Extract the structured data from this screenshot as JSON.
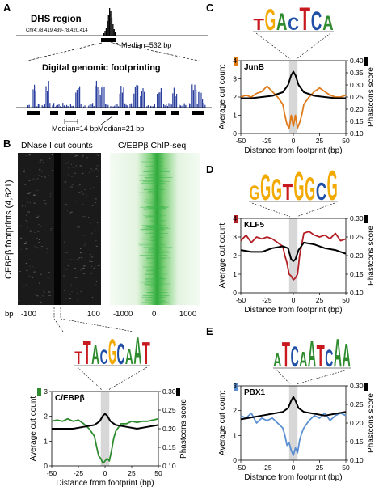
{
  "panels": {
    "a": {
      "letter": "A",
      "dhs_title": "DHS region",
      "dhs_coord": "Chr4:78,419,439-78,420,414",
      "dhs_median": "Median=532 bp",
      "dgf_title": "Digital genomic footprinting",
      "median_14": "Median=14 bp",
      "median_21": "Median=21 bp"
    },
    "b": {
      "letter": "B",
      "dnase_title": "DNase I cut counts",
      "chip_title": "C/EBPβ ChIP-seq",
      "ylabel": "CEBPβ footprints (4,821)",
      "bp": "bp",
      "dnase_ticks": [
        "-100",
        "100"
      ],
      "chip_ticks": [
        "-1000",
        "0",
        "1000"
      ]
    },
    "c": {
      "letter": "C"
    },
    "d": {
      "letter": "D"
    },
    "e": {
      "letter": "E"
    }
  },
  "motifs": {
    "cebpb": [
      "T",
      "T",
      "A",
      "C",
      "G",
      "C",
      "A",
      "A",
      "T"
    ],
    "junb": [
      "T",
      "G",
      "A",
      "C",
      "T",
      "C",
      "A"
    ],
    "klf5": [
      "G",
      "G",
      "G",
      "T",
      "G",
      "G",
      "C",
      "G"
    ],
    "pbx1": [
      "A",
      "T",
      "C",
      "A",
      "A",
      "T",
      "C",
      "A",
      "A"
    ]
  },
  "colors": {
    "cebpb": "#2e8b2e",
    "junb": "#e07b1a",
    "klf5": "#b21e24",
    "pbx1": "#5b8fd1",
    "phastcons": "#000000",
    "dnase_bg": "#1a1a1a",
    "chip_green": "#39b54a",
    "dgf_blue": "#2b3f9e"
  },
  "chart_data": [
    {
      "id": "cebpb",
      "type": "line",
      "factor": "C/EBPβ",
      "xlabel": "Distance from footprint (bp)",
      "ylabel": "Average cut count",
      "y2label": "Phastcons score",
      "xlim": [
        -50,
        50
      ],
      "ylim": [
        0,
        3
      ],
      "y2lim": [
        0.1,
        0.3
      ],
      "xticks": [
        -50,
        -25,
        0,
        25,
        50
      ],
      "yticks": [
        0,
        1,
        2,
        3
      ],
      "y2ticks": [
        0.1,
        0.15,
        0.2,
        0.25,
        0.3
      ],
      "series": [
        {
          "name": "C/EBPβ",
          "color": "#2e8b2e",
          "x": [
            -50,
            -45,
            -40,
            -35,
            -30,
            -25,
            -20,
            -15,
            -10,
            -8,
            -6,
            -4,
            -2,
            0,
            2,
            4,
            6,
            8,
            10,
            15,
            20,
            25,
            30,
            35,
            40,
            45,
            50
          ],
          "y": [
            1.8,
            1.85,
            1.8,
            1.9,
            1.8,
            1.85,
            1.7,
            1.5,
            1.2,
            0.8,
            0.4,
            0.3,
            0.1,
            0.2,
            0.3,
            0.2,
            0.6,
            1.1,
            1.4,
            1.7,
            1.7,
            1.8,
            1.75,
            1.8,
            1.8,
            1.85,
            1.9
          ]
        },
        {
          "name": "Phastcons",
          "color": "#000000",
          "axis": "y2",
          "x": [
            -50,
            -40,
            -30,
            -20,
            -10,
            -5,
            -2,
            0,
            2,
            5,
            10,
            20,
            30,
            40,
            50
          ],
          "y": [
            0.2,
            0.2,
            0.2,
            0.205,
            0.21,
            0.22,
            0.235,
            0.24,
            0.235,
            0.22,
            0.21,
            0.205,
            0.2,
            0.205,
            0.21
          ]
        }
      ]
    },
    {
      "id": "junb",
      "type": "line",
      "factor": "JunB",
      "xlabel": "Distance from footprint (bp)",
      "ylabel": "Average cut count",
      "y2label": "Phastcons score",
      "xlim": [
        -50,
        50
      ],
      "ylim": [
        0,
        4
      ],
      "y2lim": [
        0.1,
        0.4
      ],
      "xticks": [
        -50,
        -25,
        0,
        25,
        50
      ],
      "yticks": [
        0,
        1,
        2,
        3,
        4
      ],
      "y2ticks": [
        0.1,
        0.15,
        0.2,
        0.25,
        0.3,
        0.35,
        0.4
      ],
      "series": [
        {
          "name": "JunB",
          "color": "#e07b1a",
          "x": [
            -50,
            -45,
            -40,
            -35,
            -30,
            -25,
            -20,
            -15,
            -10,
            -8,
            -6,
            -4,
            -2,
            0,
            2,
            4,
            6,
            8,
            10,
            15,
            20,
            25,
            30,
            35,
            40,
            45,
            50
          ],
          "y": [
            2.0,
            2.1,
            2.0,
            2.2,
            2.3,
            2.6,
            2.3,
            2.0,
            1.6,
            1.0,
            0.5,
            0.3,
            1.0,
            0.4,
            1.0,
            0.3,
            0.6,
            1.0,
            1.6,
            2.0,
            2.3,
            2.5,
            2.3,
            2.1,
            2.0,
            2.0,
            2.1
          ]
        },
        {
          "name": "Phastcons",
          "color": "#000000",
          "axis": "y2",
          "x": [
            -50,
            -40,
            -30,
            -20,
            -10,
            -5,
            -2,
            0,
            2,
            5,
            10,
            20,
            30,
            40,
            50
          ],
          "y": [
            0.245,
            0.245,
            0.25,
            0.255,
            0.27,
            0.3,
            0.34,
            0.355,
            0.34,
            0.3,
            0.27,
            0.255,
            0.25,
            0.245,
            0.245
          ]
        }
      ]
    },
    {
      "id": "klf5",
      "type": "line",
      "factor": "KLF5",
      "xlabel": "Distance from footprint (bp)",
      "ylabel": "Average cut count",
      "y2label": "Phastcons score",
      "xlim": [
        -50,
        50
      ],
      "ylim": [
        0,
        4
      ],
      "y2lim": [
        0.1,
        0.3
      ],
      "xticks": [
        -50,
        -25,
        0,
        25,
        50
      ],
      "yticks": [
        0,
        1,
        2,
        3,
        4
      ],
      "y2ticks": [
        0.1,
        0.15,
        0.2,
        0.25,
        0.3
      ],
      "series": [
        {
          "name": "KLF5",
          "color": "#b21e24",
          "x": [
            -50,
            -45,
            -40,
            -35,
            -30,
            -25,
            -20,
            -15,
            -10,
            -8,
            -6,
            -4,
            -2,
            0,
            2,
            4,
            6,
            8,
            10,
            15,
            20,
            25,
            30,
            35,
            40,
            45,
            50
          ],
          "y": [
            2.8,
            3.1,
            2.7,
            3.0,
            2.9,
            3.0,
            2.9,
            2.7,
            2.5,
            2.0,
            1.6,
            1.0,
            0.9,
            0.7,
            0.8,
            1.0,
            2.0,
            2.6,
            3.2,
            3.3,
            3.1,
            3.0,
            3.1,
            2.9,
            3.2,
            2.8,
            2.9
          ]
        },
        {
          "name": "Phastcons",
          "color": "#000000",
          "axis": "y2",
          "x": [
            -50,
            -40,
            -30,
            -20,
            -10,
            -5,
            -2,
            0,
            2,
            5,
            10,
            20,
            30,
            40,
            50
          ],
          "y": [
            0.215,
            0.21,
            0.21,
            0.22,
            0.225,
            0.22,
            0.19,
            0.185,
            0.19,
            0.215,
            0.235,
            0.23,
            0.22,
            0.215,
            0.205
          ]
        }
      ]
    },
    {
      "id": "pbx1",
      "type": "line",
      "factor": "PBX1",
      "xlabel": "Distance from footprint (bp)",
      "ylabel": "Average cut count",
      "y2label": "Phastcons score",
      "xlim": [
        -50,
        50
      ],
      "ylim": [
        0,
        3
      ],
      "y2lim": [
        0.1,
        0.3
      ],
      "xticks": [
        -50,
        -25,
        0,
        25,
        50
      ],
      "yticks": [
        0,
        1,
        2,
        3
      ],
      "y2ticks": [
        0.1,
        0.15,
        0.2,
        0.25,
        0.3
      ],
      "series": [
        {
          "name": "PBX1",
          "color": "#5b8fd1",
          "x": [
            -50,
            -45,
            -40,
            -35,
            -30,
            -25,
            -20,
            -15,
            -10,
            -8,
            -6,
            -4,
            -2,
            0,
            2,
            4,
            6,
            8,
            10,
            15,
            20,
            25,
            30,
            35,
            40,
            45,
            50
          ],
          "y": [
            1.8,
            1.7,
            1.9,
            1.5,
            1.7,
            1.6,
            1.7,
            1.5,
            1.3,
            1.0,
            0.6,
            0.7,
            0.4,
            0.2,
            0.5,
            0.3,
            0.8,
            1.1,
            1.3,
            1.6,
            1.8,
            1.7,
            1.9,
            1.6,
            1.8,
            1.9,
            1.8
          ]
        },
        {
          "name": "Phastcons",
          "color": "#000000",
          "axis": "y2",
          "x": [
            -50,
            -40,
            -30,
            -20,
            -10,
            -5,
            -2,
            0,
            2,
            5,
            10,
            20,
            30,
            40,
            50
          ],
          "y": [
            0.21,
            0.215,
            0.22,
            0.225,
            0.23,
            0.24,
            0.26,
            0.27,
            0.26,
            0.24,
            0.23,
            0.225,
            0.22,
            0.225,
            0.23
          ]
        }
      ]
    }
  ]
}
